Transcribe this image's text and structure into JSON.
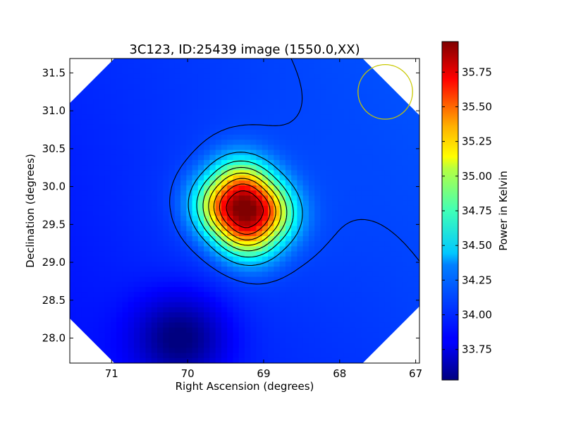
{
  "chart_data": {
    "type": "heatmap",
    "title": "3C123, ID:25439 image (1550.0,XX)",
    "xlabel": "Right Ascension (degrees)",
    "ylabel": "Declination (degrees)",
    "xlim": [
      71.55,
      66.95
    ],
    "ylim": [
      27.67,
      31.69
    ],
    "x_ticks": [
      71,
      70,
      69,
      68,
      67
    ],
    "x_tick_labels": [
      "71",
      "70",
      "69",
      "68",
      "67"
    ],
    "y_ticks": [
      28.0,
      28.5,
      29.0,
      29.5,
      30.0,
      30.5,
      31.0,
      31.5
    ],
    "y_tick_labels": [
      "28.0",
      "28.5",
      "29.0",
      "29.5",
      "30.0",
      "30.5",
      "31.0",
      "31.5"
    ],
    "colorbar": {
      "label": "Power in Kelvin",
      "colormap": "jet",
      "range": [
        33.53,
        35.97
      ],
      "ticks": [
        33.75,
        34.0,
        34.25,
        34.5,
        34.75,
        35.0,
        35.25,
        35.5,
        35.75
      ],
      "tick_labels": [
        "33.75",
        "34.00",
        "34.25",
        "34.50",
        "34.75",
        "35.00",
        "35.25",
        "35.50",
        "35.75"
      ]
    },
    "peak": {
      "ra": 69.25,
      "dec": 29.7,
      "value": 35.95
    },
    "background_value": 33.95,
    "minimum": {
      "ra": 70.1,
      "dec": 28.0,
      "value": 33.55
    },
    "contour_levels": [
      34.0,
      34.25,
      34.5,
      34.75,
      35.0,
      35.25,
      35.5,
      35.75
    ],
    "beam_circle": {
      "ra": 67.4,
      "dec": 31.25,
      "radius_deg": 0.36,
      "color": "#c8c800"
    },
    "grid": false
  }
}
